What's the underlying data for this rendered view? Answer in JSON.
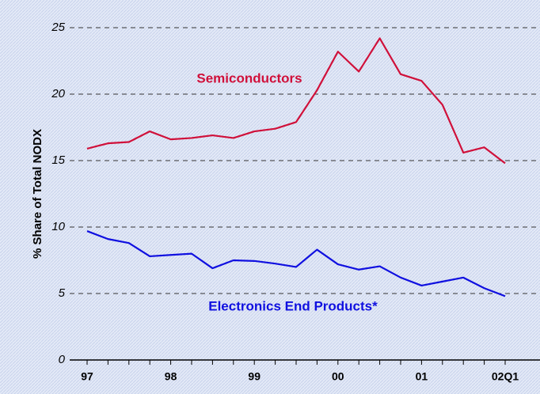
{
  "chart_data": {
    "type": "line",
    "y_label": "% Share of Total NODX",
    "categories": [
      "97",
      null,
      null,
      null,
      "98",
      null,
      null,
      null,
      "99",
      null,
      null,
      null,
      "00",
      null,
      null,
      null,
      "01",
      null,
      null,
      null,
      "02Q1"
    ],
    "series": [
      {
        "name": "Semiconductors",
        "color": "#d0103a",
        "values": [
          15.9,
          16.3,
          16.4,
          17.2,
          16.6,
          16.7,
          16.9,
          16.7,
          17.2,
          17.4,
          17.9,
          20.3,
          23.2,
          21.7,
          24.2,
          21.5,
          21.0,
          19.2,
          15.6,
          16.0,
          14.8
        ]
      },
      {
        "name": "Electronics End Products*",
        "color": "#1010e0",
        "values": [
          9.7,
          9.1,
          8.8,
          7.8,
          7.9,
          8.0,
          6.9,
          7.5,
          7.45,
          7.25,
          7.0,
          8.3,
          7.2,
          6.8,
          7.05,
          6.2,
          5.6,
          5.9,
          6.2,
          5.4,
          4.8
        ]
      }
    ],
    "ylim": [
      0,
      25
    ],
    "yticks": [
      0,
      5,
      10,
      15,
      20,
      25
    ],
    "grid": true
  }
}
